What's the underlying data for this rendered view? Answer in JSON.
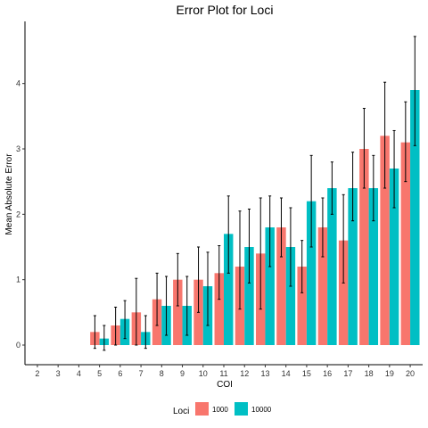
{
  "chart_data": {
    "type": "bar",
    "title": "Error Plot for Loci",
    "xlabel": "COI",
    "ylabel": "Mean Absolute Error",
    "categories": [
      "2",
      "3",
      "4",
      "5",
      "6",
      "7",
      "8",
      "9",
      "10",
      "11",
      "12",
      "13",
      "14",
      "15",
      "16",
      "17",
      "18",
      "19",
      "20"
    ],
    "ylim": [
      -0.3,
      4.95
    ],
    "yticks": [
      0,
      1,
      2,
      3,
      4
    ],
    "grid": false,
    "legend": {
      "title": "Loci",
      "placement": "bottom"
    },
    "series": [
      {
        "name": "1000",
        "color": "#F8766D",
        "values": [
          null,
          null,
          null,
          0.2,
          0.3,
          0.5,
          0.7,
          1.0,
          1.0,
          1.1,
          1.2,
          1.4,
          1.8,
          1.2,
          1.8,
          1.6,
          3.0,
          3.2,
          3.1
        ],
        "err_low": [
          null,
          null,
          null,
          -0.05,
          0.0,
          0.0,
          0.3,
          0.6,
          0.5,
          0.7,
          0.55,
          0.55,
          1.35,
          0.8,
          1.35,
          0.95,
          2.4,
          2.4,
          2.5
        ],
        "err_high": [
          null,
          null,
          null,
          0.45,
          0.58,
          1.02,
          1.1,
          1.4,
          1.5,
          1.52,
          2.05,
          2.25,
          2.25,
          1.6,
          2.25,
          2.3,
          3.62,
          4.02,
          3.72
        ]
      },
      {
        "name": "10000",
        "color": "#00BFC4",
        "values": [
          null,
          null,
          null,
          0.1,
          0.4,
          0.2,
          0.6,
          0.6,
          0.9,
          1.7,
          1.5,
          1.8,
          1.5,
          2.2,
          2.4,
          2.4,
          2.4,
          2.7,
          3.9
        ],
        "err_low": [
          null,
          null,
          null,
          -0.08,
          0.1,
          -0.05,
          0.15,
          0.15,
          0.3,
          1.1,
          0.95,
          1.2,
          0.9,
          1.5,
          2.0,
          1.9,
          1.9,
          2.1,
          3.05
        ],
        "err_high": [
          null,
          null,
          null,
          0.3,
          0.68,
          0.45,
          1.05,
          1.05,
          1.42,
          2.28,
          2.08,
          2.28,
          2.1,
          2.9,
          2.8,
          2.95,
          2.9,
          3.28,
          4.72
        ]
      }
    ]
  }
}
